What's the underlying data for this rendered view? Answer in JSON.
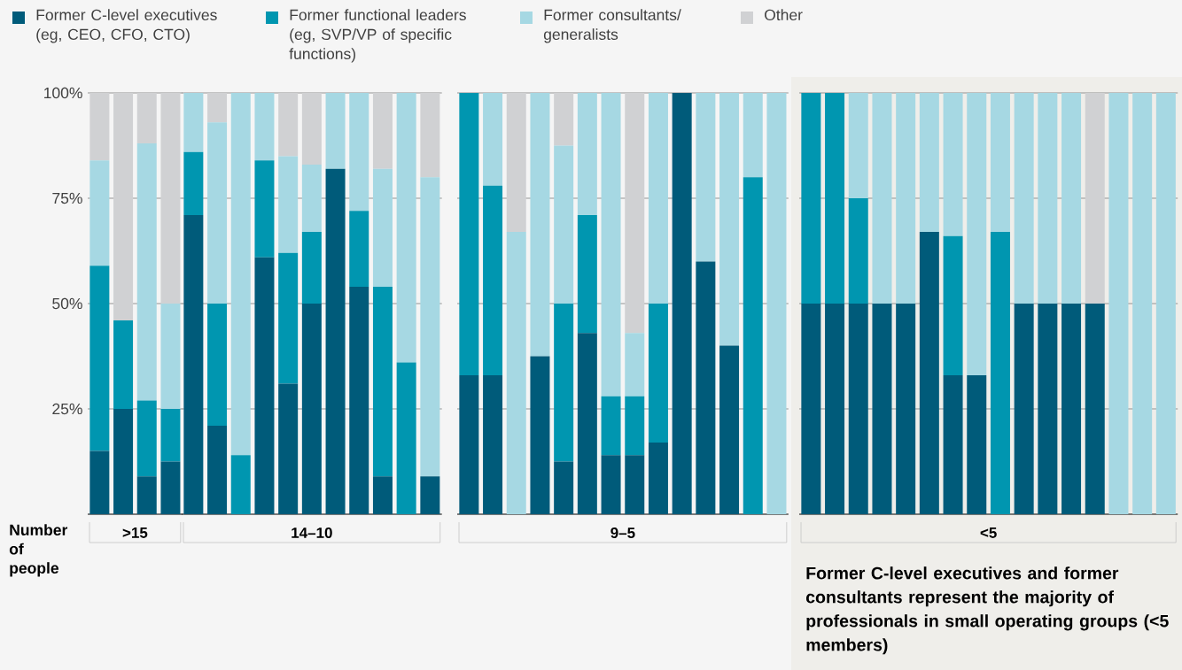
{
  "chart_data": [
    {
      "type": "bar",
      "stacked": true,
      "xlabel": ">15",
      "categories": [
        null,
        null,
        null,
        null
      ],
      "ylim": [
        0,
        100
      ],
      "yticks": [
        {
          "value": 25,
          "label": "25%"
        },
        {
          "value": 50,
          "label": "50%"
        },
        {
          "value": 75,
          "label": "75%"
        },
        {
          "value": 100,
          "label": "100%"
        }
      ],
      "grid": "y",
      "tick_labels": "y",
      "legend": "top",
      "annotations": [
        "Number of people"
      ],
      "series": [
        {
          "name": "Former C-level executives (eg, CEO, CFO, CTO)",
          "color": "#005b7a",
          "values": [
            15,
            25,
            9,
            12.5
          ]
        },
        {
          "name": "Former functional leaders (eg, SVP/VP of specific functions)",
          "color": "#0096b0",
          "values": [
            44,
            21,
            18,
            12.5
          ]
        },
        {
          "name": "Former consultants/ generalists",
          "color": "#a6d8e3",
          "values": [
            25,
            0,
            61,
            25
          ]
        },
        {
          "name": "Other",
          "color": "#d0d1d3",
          "values": [
            16,
            54,
            12,
            50
          ]
        }
      ]
    },
    {
      "type": "bar",
      "stacked": true,
      "xlabel": "14–10",
      "categories": [
        null,
        null,
        null,
        null,
        null,
        null,
        null,
        null,
        null,
        null,
        null
      ],
      "ylim": [
        0,
        100
      ],
      "yticks": [
        {
          "value": 25,
          "label": null
        },
        {
          "value": 50,
          "label": null
        },
        {
          "value": 75,
          "label": null
        },
        {
          "value": 100,
          "label": null
        }
      ],
      "grid": "y",
      "tick_labels": false,
      "series": [
        {
          "color": "#005b7a",
          "values": [
            71,
            21,
            0,
            61,
            31,
            50,
            82,
            54,
            9,
            0,
            9
          ]
        },
        {
          "color": "#0096b0",
          "values": [
            15,
            29,
            14,
            23,
            31,
            17,
            0,
            18,
            45,
            36,
            0
          ]
        },
        {
          "color": "#a6d8e3",
          "values": [
            14,
            43,
            86,
            16,
            23,
            16,
            18,
            28,
            28,
            64,
            71
          ]
        },
        {
          "color": "#d0d1d3",
          "values": [
            0,
            7,
            0,
            0,
            15,
            17,
            0,
            0,
            18,
            0,
            20
          ]
        }
      ]
    },
    {
      "type": "bar",
      "stacked": true,
      "xlabel": "9–5",
      "categories": [
        null,
        null,
        null,
        null,
        null,
        null,
        null,
        null,
        null,
        null,
        null,
        null,
        null,
        null
      ],
      "ylim": [
        0,
        100
      ],
      "yticks": [
        {
          "value": 25,
          "label": null
        },
        {
          "value": 50,
          "label": null
        },
        {
          "value": 75,
          "label": null
        },
        {
          "value": 100,
          "label": null
        }
      ],
      "grid": "y",
      "tick_labels": false,
      "series": [
        {
          "color": "#005b7a",
          "values": [
            33,
            33,
            0,
            37.5,
            12.5,
            43,
            14,
            14,
            17,
            100,
            60,
            40,
            0,
            0
          ]
        },
        {
          "color": "#0096b0",
          "values": [
            67,
            45,
            0,
            0,
            37.5,
            28,
            14,
            14,
            33,
            0,
            0,
            0,
            80,
            0
          ]
        },
        {
          "color": "#a6d8e3",
          "values": [
            0,
            22,
            67,
            62.5,
            37.5,
            29,
            72,
            15,
            50,
            0,
            40,
            60,
            20,
            100
          ]
        },
        {
          "color": "#d0d1d3",
          "values": [
            0,
            0,
            33,
            0,
            12.5,
            0,
            0,
            57,
            0,
            0,
            0,
            0,
            0,
            0
          ]
        }
      ]
    },
    {
      "type": "bar",
      "stacked": true,
      "xlabel": "<5",
      "categories": [
        null,
        null,
        null,
        null,
        null,
        null,
        null,
        null,
        null,
        null,
        null,
        null,
        null,
        null,
        null,
        null
      ],
      "ylim": [
        0,
        100
      ],
      "yticks": [
        {
          "value": 25,
          "label": null
        },
        {
          "value": 50,
          "label": null
        },
        {
          "value": 75,
          "label": null
        },
        {
          "value": 100,
          "label": null
        }
      ],
      "grid": "y",
      "tick_labels": false,
      "annotations": [
        "Former C-level executives and former consultants represent the majority of professionals in small operating groups (<5 members)"
      ],
      "series": [
        {
          "color": "#005b7a",
          "values": [
            50,
            50,
            50,
            50,
            50,
            67,
            33,
            33,
            0,
            50,
            50,
            50,
            50,
            0,
            0,
            0
          ]
        },
        {
          "color": "#0096b0",
          "values": [
            50,
            50,
            25,
            0,
            0,
            0,
            33,
            0,
            67,
            0,
            0,
            0,
            0,
            0,
            0,
            0
          ]
        },
        {
          "color": "#a6d8e3",
          "values": [
            0,
            0,
            25,
            50,
            50,
            33,
            34,
            67,
            33,
            50,
            50,
            50,
            0,
            100,
            100,
            100
          ]
        },
        {
          "color": "#d0d1d3",
          "values": [
            0,
            0,
            0,
            0,
            0,
            0,
            0,
            0,
            0,
            0,
            0,
            0,
            50,
            0,
            0,
            0
          ]
        }
      ]
    }
  ]
}
